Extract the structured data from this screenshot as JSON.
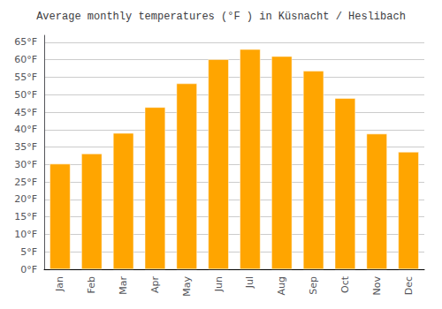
{
  "chart_data": {
    "type": "bar",
    "title": "Average monthly temperatures (°F ) in Küsnacht / Heslibach",
    "categories": [
      "Jan",
      "Feb",
      "Mar",
      "Apr",
      "May",
      "Jun",
      "Jul",
      "Aug",
      "Sep",
      "Oct",
      "Nov",
      "Dec"
    ],
    "values": [
      30.2,
      33.1,
      39.0,
      46.4,
      53.2,
      60.1,
      63.0,
      61.0,
      56.8,
      49.0,
      38.8,
      33.6
    ],
    "color": "#FFA500",
    "ylim": [
      0,
      67
    ],
    "yticks": [
      {
        "value": 0,
        "label": "0°F"
      },
      {
        "value": 5,
        "label": "5°F"
      },
      {
        "value": 10,
        "label": "10°F"
      },
      {
        "value": 15,
        "label": "15°F"
      },
      {
        "value": 20,
        "label": "20°F"
      },
      {
        "value": 25,
        "label": "25°F"
      },
      {
        "value": 30,
        "label": "30°F"
      },
      {
        "value": 35,
        "label": "35°F"
      },
      {
        "value": 40,
        "label": "40°F"
      },
      {
        "value": 45,
        "label": "45°F"
      },
      {
        "value": 50,
        "label": "50°F"
      },
      {
        "value": 55,
        "label": "55°F"
      },
      {
        "value": 60,
        "label": "60°F"
      },
      {
        "value": 65,
        "label": "65°F"
      }
    ],
    "grid": true
  }
}
